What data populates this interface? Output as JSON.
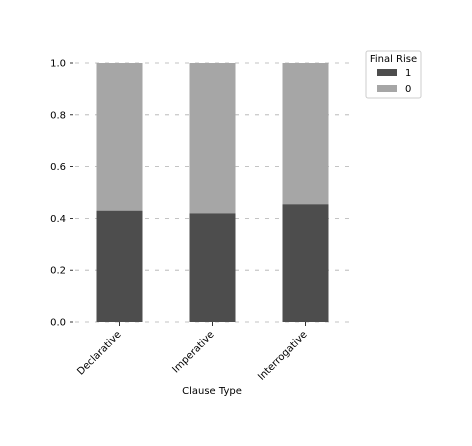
{
  "chart_data": {
    "type": "bar",
    "stacked": true,
    "xlabel": "Clause Type",
    "ylabel": "",
    "categories": [
      "Declarative",
      "Imperative",
      "Interrogative"
    ],
    "series": [
      {
        "name": "1",
        "values": [
          0.43,
          0.42,
          0.455
        ],
        "color": "#4d4d4d"
      },
      {
        "name": "0",
        "values": [
          0.57,
          0.58,
          0.545
        ],
        "color": "#a6a6a6"
      }
    ],
    "yticks": [
      "0.0",
      "0.2",
      "0.4",
      "0.6",
      "0.8",
      "1.0"
    ],
    "ylim": [
      0,
      1
    ],
    "grid": true,
    "grid_axis": "y",
    "legend": {
      "title": "Final Rise",
      "placement": "outside-right-top"
    }
  }
}
